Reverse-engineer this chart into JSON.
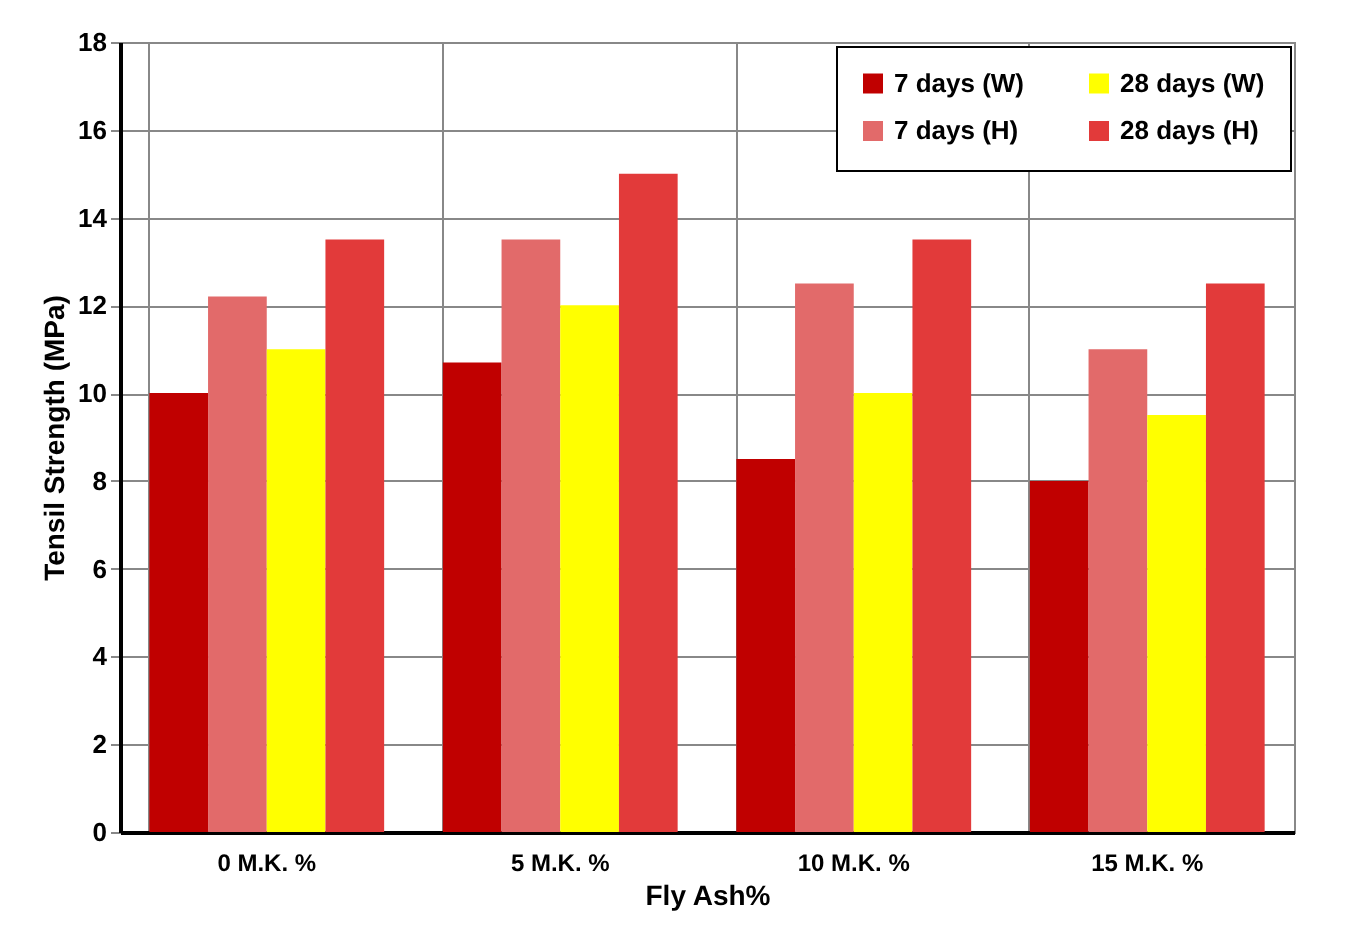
{
  "chart_data": {
    "type": "bar",
    "xlabel": "Fly Ash%",
    "ylabel": "Tensil Strength (MPa)",
    "categories": [
      "0 M.K. %",
      "5 M.K. %",
      "10 M.K. %",
      "15 M.K. %"
    ],
    "series": [
      {
        "name": "7 days (W)",
        "color": "#c00000",
        "values": [
          10,
          10.7,
          8.5,
          8
        ]
      },
      {
        "name": "7 days (H)",
        "color": "#e26a6a",
        "values": [
          12.2,
          13.5,
          12.5,
          11
        ]
      },
      {
        "name": "28 days (W)",
        "color": "#ffff00",
        "values": [
          11,
          12,
          10,
          9.5
        ]
      },
      {
        "name": "28 days (H)",
        "color": "#e23a3a",
        "values": [
          13.5,
          15,
          13.5,
          12.5
        ]
      }
    ],
    "ylim": [
      0,
      18
    ],
    "yticks": [
      0,
      2,
      4,
      6,
      8,
      10,
      12,
      14,
      16,
      18
    ],
    "grid": true,
    "legend": "top right"
  }
}
